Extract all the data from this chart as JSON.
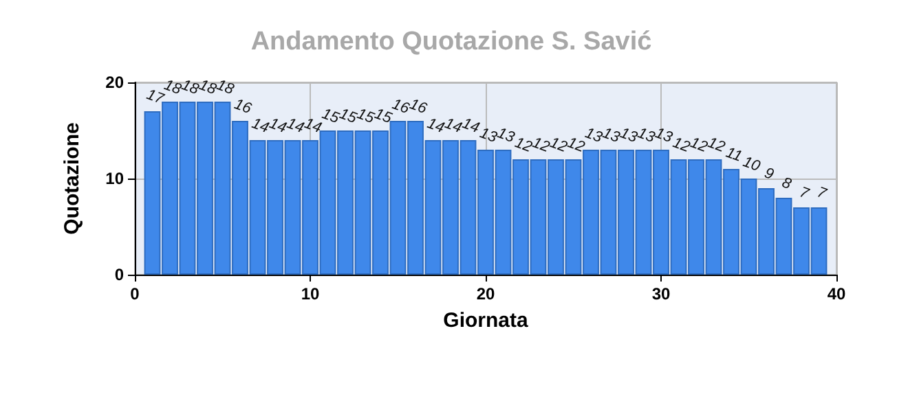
{
  "chart_data": {
    "type": "bar",
    "title": "Andamento Quotazione S. Savić",
    "xlabel": "Giornata",
    "ylabel": "Quotazione",
    "x": [
      1,
      2,
      3,
      4,
      5,
      6,
      7,
      8,
      9,
      10,
      11,
      12,
      13,
      14,
      15,
      16,
      17,
      18,
      19,
      20,
      21,
      22,
      23,
      24,
      25,
      26,
      27,
      28,
      29,
      30,
      31,
      32,
      33,
      34,
      35,
      36,
      37,
      38,
      39
    ],
    "values": [
      17,
      18,
      18,
      18,
      18,
      16,
      14,
      14,
      14,
      14,
      15,
      15,
      15,
      15,
      16,
      16,
      14,
      14,
      14,
      13,
      13,
      12,
      12,
      12,
      12,
      13,
      13,
      13,
      13,
      13,
      12,
      12,
      12,
      11,
      10,
      9,
      8,
      7,
      7
    ],
    "color": "#3f88ea",
    "xlim": [
      0,
      40
    ],
    "xticks": [
      0,
      10,
      20,
      30,
      40
    ],
    "ylim": [
      0,
      20
    ],
    "yticks": [
      0,
      10,
      20
    ],
    "grid": true,
    "data_labels": true
  }
}
